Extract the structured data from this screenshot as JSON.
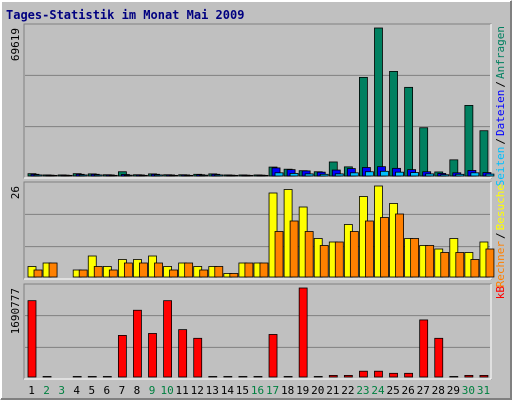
{
  "chart_data": {
    "type": "bar",
    "title": "Tages-Statistik im Monat Mai 2009",
    "categories": [
      "1",
      "2",
      "3",
      "4",
      "5",
      "6",
      "7",
      "8",
      "9",
      "10",
      "11",
      "12",
      "13",
      "14",
      "15",
      "16",
      "17",
      "18",
      "19",
      "20",
      "21",
      "22",
      "23",
      "24",
      "25",
      "26",
      "27",
      "28",
      "29",
      "30",
      "31"
    ],
    "category_colors": [
      "#000000",
      "#008040",
      "#008040",
      "#000000",
      "#000000",
      "#000000",
      "#000000",
      "#000000",
      "#008040",
      "#008040",
      "#000000",
      "#000000",
      "#000000",
      "#000000",
      "#000000",
      "#008040",
      "#008040",
      "#000000",
      "#000000",
      "#000000",
      "#000000",
      "#000000",
      "#008040",
      "#008040",
      "#000000",
      "#000000",
      "#000000",
      "#000000",
      "#000000",
      "#008040",
      "#008040"
    ],
    "legend_separator": "/",
    "panels": [
      {
        "ylim": [
          0,
          69619
        ],
        "yticks": [
          69619
        ],
        "series": [
          {
            "name": "Anfragen",
            "color": "#008060",
            "values": [
              1100,
              500,
              500,
              1100,
              1000,
              600,
              2000,
              600,
              1000,
              600,
              600,
              800,
              1000,
              500,
              500,
              500,
              4200,
              3200,
              2500,
              2000,
              6600,
              4300,
              46400,
              69619,
              49200,
              41700,
              22700,
              1900,
              7600,
              33200,
              21300
            ]
          },
          {
            "name": "Dateien",
            "color": "#0000ff",
            "values": [
              800,
              400,
              400,
              800,
              800,
              500,
              700,
              500,
              800,
              500,
              500,
              600,
              800,
              400,
              400,
              400,
              3800,
              3000,
              2400,
              1800,
              2800,
              3500,
              4000,
              4400,
              3600,
              3000,
              2000,
              1200,
              1500,
              2600,
              1600
            ]
          },
          {
            "name": "Seiten",
            "color": "#00c0ff",
            "values": [
              500,
              300,
              300,
              500,
              500,
              300,
              400,
              300,
              500,
              300,
              300,
              400,
              500,
              300,
              300,
              300,
              1500,
              1200,
              1000,
              800,
              1000,
              1500,
              2000,
              2200,
              1800,
              1600,
              1000,
              600,
              800,
              1500,
              900
            ]
          }
        ]
      },
      {
        "ylim": [
          0,
          26
        ],
        "yticks": [
          26
        ],
        "series": [
          {
            "name": "Besuche",
            "color": "#ffff00",
            "values": [
              3,
              4,
              0,
              2,
              6,
              3,
              5,
              5,
              6,
              3,
              4,
              3,
              3,
              1,
              4,
              4,
              24,
              25,
              20,
              11,
              10,
              15,
              23,
              26,
              21,
              11,
              9,
              8,
              11,
              7,
              10
            ]
          },
          {
            "name": "Rechner",
            "color": "#ff8000",
            "values": [
              2,
              4,
              0,
              2,
              3,
              2,
              4,
              4,
              4,
              2,
              4,
              2,
              3,
              1,
              4,
              4,
              13,
              16,
              13,
              9,
              10,
              13,
              16,
              17,
              18,
              11,
              9,
              7,
              7,
              5,
              8
            ]
          }
        ]
      },
      {
        "ylim": [
          0,
          1690777
        ],
        "yticks": [
          1690777
        ],
        "series": [
          {
            "name": "kB",
            "color": "#ff0000",
            "values": [
              1450000,
              10000,
              0,
              10000,
              10000,
              10000,
              790000,
              1268000,
              827000,
              1450000,
              900000,
              735000,
              10000,
              10000,
              10000,
              10000,
              808000,
              10000,
              1690777,
              10000,
              30000,
              30000,
              110000,
              110000,
              70000,
              70000,
              1084000,
              735000,
              10000,
              30000,
              30000
            ]
          }
        ]
      }
    ]
  }
}
